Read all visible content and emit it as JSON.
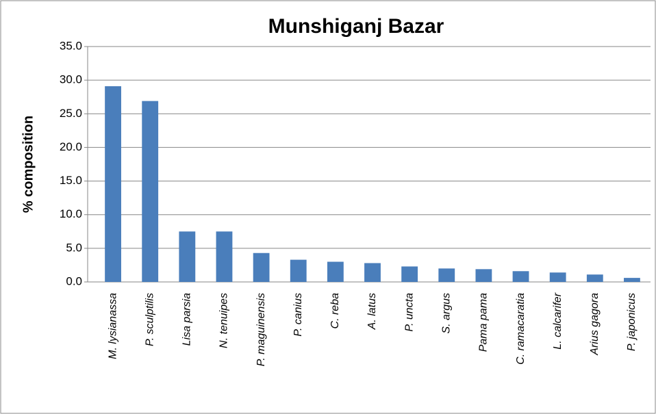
{
  "chart_data": {
    "type": "bar",
    "title": "Munshiganj Bazar",
    "y_label": "% composition",
    "categories": [
      "M. lysianassa",
      "P. sculptilis",
      "Lisa parsia",
      "N. tenuipes",
      "P. maguinensis",
      "P. canius",
      "C. reba",
      "A. latus",
      "P. uncta",
      "S. argus",
      "Pama pama",
      "C. ramacaratia",
      "L. calcarifer",
      "Arius gagora",
      "P. japonicus"
    ],
    "values": [
      29.1,
      26.9,
      7.5,
      7.5,
      4.3,
      3.3,
      3.0,
      2.8,
      2.3,
      2.0,
      1.9,
      1.6,
      1.4,
      1.1,
      0.6
    ],
    "color": "#4a7ebb",
    "ylim": [
      0,
      35
    ],
    "yticks": [
      {
        "value": 0,
        "label": "0.0"
      },
      {
        "value": 5,
        "label": "5.0"
      },
      {
        "value": 10,
        "label": "10.0"
      },
      {
        "value": 15,
        "label": "15.0"
      },
      {
        "value": 20,
        "label": "20.0"
      },
      {
        "value": 25,
        "label": "25.0"
      },
      {
        "value": 30,
        "label": "30.0"
      },
      {
        "value": 35,
        "label": "35.0"
      }
    ],
    "grid": true
  }
}
